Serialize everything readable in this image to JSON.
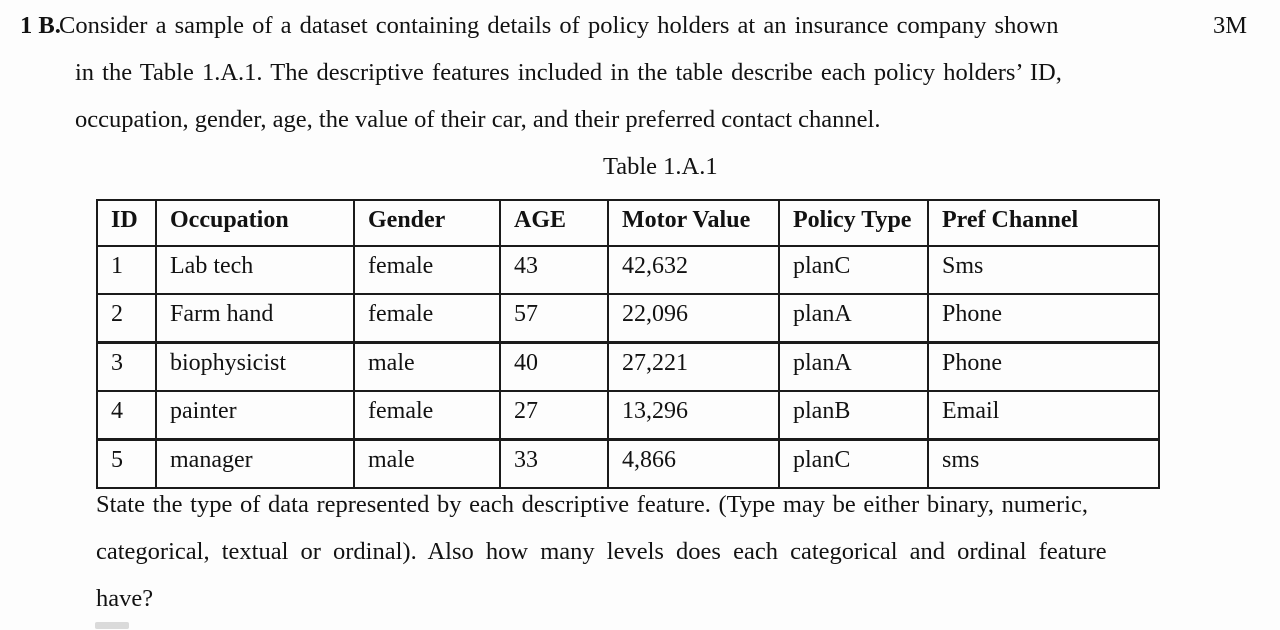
{
  "page": {
    "background": "#fdfdfd",
    "text_color": "#121212",
    "border_color": "#1b1b1b"
  },
  "question": {
    "number": "1 B.",
    "marks": "3M",
    "lines": [
      "Consider a sample of a dataset containing details of policy holders at an insurance company shown",
      "in the Table 1.A.1. The descriptive features included in the table describe each policy holders’ ID,",
      "occupation, gender, age, the value of their car, and their preferred contact channel."
    ]
  },
  "table": {
    "caption": "Table 1.A.1",
    "headers": [
      "ID",
      "Occupation",
      "Gender",
      "AGE",
      "Motor Value",
      "Policy Type",
      "Pref Channel"
    ],
    "rows": [
      [
        "1",
        "Lab tech",
        "female",
        "43",
        "42,632",
        "planC",
        "Sms"
      ],
      [
        "2",
        "Farm hand",
        "female",
        "57",
        "22,096",
        "planA",
        "Phone"
      ],
      [
        "3",
        "biophysicist",
        "male",
        "40",
        "27,221",
        "planA",
        "Phone"
      ],
      [
        "4",
        "painter",
        "female",
        "27",
        "13,296",
        "planB",
        "Email"
      ],
      [
        "5",
        "manager",
        "male",
        "33",
        "4,866",
        "planC",
        "sms"
      ]
    ]
  },
  "closing": {
    "lines": [
      "State the type of data represented by each descriptive feature. (Type may be either binary, numeric,",
      "categorical, textual or ordinal). Also how many levels does each categorical and ordinal feature",
      "have?"
    ]
  }
}
